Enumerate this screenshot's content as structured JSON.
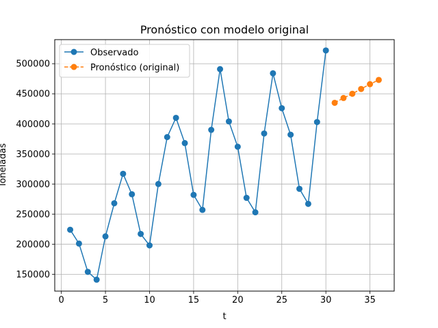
{
  "chart_data": {
    "type": "line",
    "title": "Pronóstico con modelo original",
    "xlabel": "t",
    "ylabel": "Toneladas",
    "xlim": [
      -0.75,
      37.75
    ],
    "ylim": [
      122000,
      540000
    ],
    "xticks": [
      0,
      5,
      10,
      15,
      20,
      25,
      30,
      35
    ],
    "yticks": [
      150000,
      200000,
      250000,
      300000,
      350000,
      400000,
      450000,
      500000
    ],
    "grid": true,
    "legend_position": "top-left",
    "series": [
      {
        "name": "Observado",
        "color": "#1f77b4",
        "line_style": "solid",
        "marker": "circle",
        "x": [
          1,
          2,
          3,
          4,
          5,
          6,
          7,
          8,
          9,
          10,
          11,
          12,
          13,
          14,
          15,
          16,
          17,
          18,
          19,
          20,
          21,
          22,
          23,
          24,
          25,
          26,
          27,
          28,
          29,
          30
        ],
        "y": [
          224000,
          201000,
          154000,
          141000,
          213000,
          268000,
          317000,
          283000,
          217000,
          198000,
          300000,
          378000,
          410000,
          368000,
          282000,
          257000,
          390000,
          491000,
          404000,
          362000,
          277000,
          253000,
          384000,
          484000,
          426000,
          382000,
          292000,
          267000,
          403000,
          522000
        ]
      },
      {
        "name": "Pronóstico (original)",
        "color": "#ff7f0e",
        "line_style": "dashed",
        "marker": "circle",
        "x": [
          31,
          32,
          33,
          34,
          35,
          36
        ],
        "y": [
          435000,
          443000,
          450000,
          458000,
          466000,
          473000
        ]
      }
    ]
  }
}
